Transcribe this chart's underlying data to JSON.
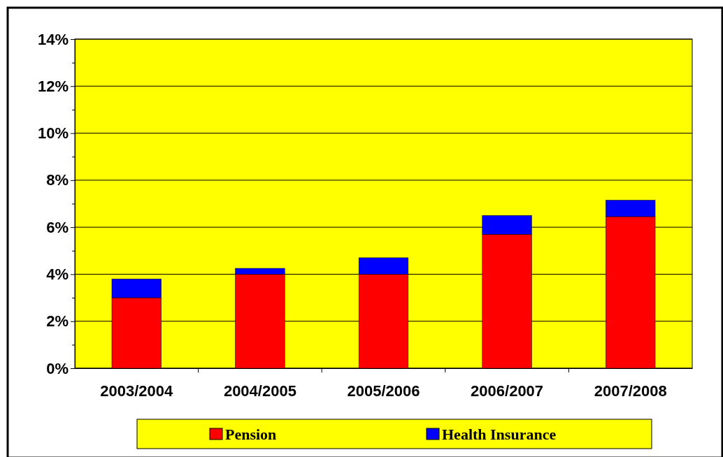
{
  "chart_data": {
    "type": "bar",
    "stacked": true,
    "categories": [
      "2003/2004",
      "2004/2005",
      "2005/2006",
      "2006/2007",
      "2007/2008"
    ],
    "series": [
      {
        "name": "Pension",
        "color": "#ff0000",
        "values": [
          3.0,
          4.0,
          4.0,
          5.7,
          6.45
        ]
      },
      {
        "name": "Health Insurance",
        "color": "#0000ff",
        "values": [
          0.8,
          0.25,
          0.7,
          0.8,
          0.7
        ]
      }
    ],
    "ylim": [
      0,
      14
    ],
    "yticks": [
      {
        "value": 0,
        "label": "0%"
      },
      {
        "value": 1,
        "label": null
      },
      {
        "value": 2,
        "label": "2%"
      },
      {
        "value": 3,
        "label": null
      },
      {
        "value": 4,
        "label": "4%"
      },
      {
        "value": 5,
        "label": null
      },
      {
        "value": 6,
        "label": "6%"
      },
      {
        "value": 7,
        "label": null
      },
      {
        "value": 8,
        "label": "8%"
      },
      {
        "value": 9,
        "label": null
      },
      {
        "value": 10,
        "label": "10%"
      },
      {
        "value": 11,
        "label": null
      },
      {
        "value": 12,
        "label": "12%"
      },
      {
        "value": 13,
        "label": null
      },
      {
        "value": 14,
        "label": "14%"
      }
    ],
    "grid": "y",
    "legend": "bottom"
  }
}
